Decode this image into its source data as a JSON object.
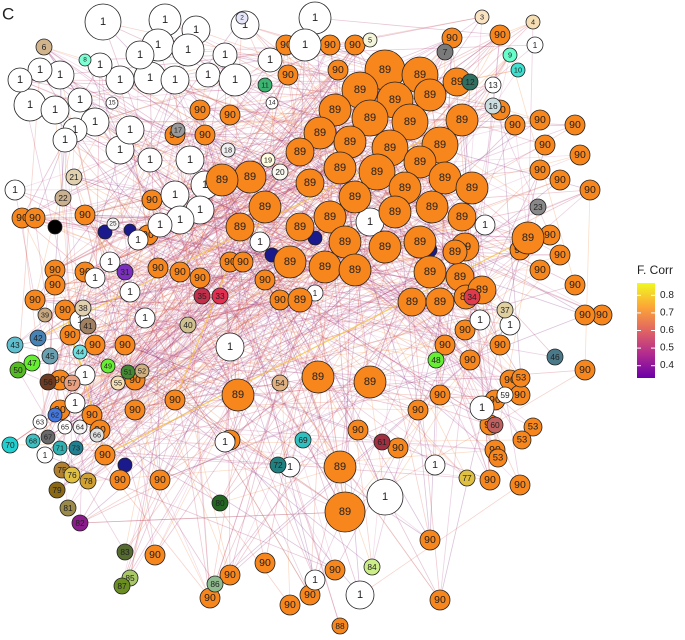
{
  "panel_label": "C",
  "colorbar": {
    "title": "F. Corr",
    "lim": [
      0.33,
      0.87
    ],
    "ticks": [
      0.8,
      0.7,
      0.6,
      0.5,
      0.4
    ],
    "colors": [
      "#6a00a8",
      "#b12a90",
      "#e16462",
      "#fca636",
      "#f0f921"
    ]
  },
  "node_groups": [
    {
      "color": "#ffffff",
      "labels": [
        "1",
        "1",
        "1",
        "1",
        "1",
        "1",
        "1",
        "1",
        "1",
        "1",
        "1",
        "1",
        "1",
        "1",
        "1",
        "1",
        "1",
        "1",
        "1",
        "1",
        "1",
        "1",
        "1",
        "1",
        "1",
        "1",
        "1",
        "1",
        "1",
        "1",
        "1",
        "1",
        "1",
        "1",
        "1",
        "1",
        "1",
        "1",
        "1",
        "1",
        "1",
        "1",
        "1",
        "1",
        "1",
        "1",
        "1",
        "1",
        "1",
        "1",
        "1",
        "1",
        "1",
        "1",
        "1",
        "1",
        "1",
        "1",
        "1",
        "1"
      ]
    },
    {
      "color": "#f7861d",
      "labels": [
        "89",
        "89",
        "89",
        "89",
        "89",
        "89",
        "89",
        "89",
        "89",
        "89",
        "89",
        "89",
        "89",
        "89",
        "89",
        "89",
        "89",
        "89",
        "89",
        "89",
        "89",
        "89",
        "89",
        "89",
        "89",
        "89",
        "89",
        "89",
        "89",
        "89",
        "89",
        "89",
        "89",
        "89",
        "89",
        "89",
        "89",
        "89",
        "89",
        "89",
        "89",
        "89",
        "89",
        "89",
        "89",
        "89",
        "89",
        "89",
        "89",
        "89",
        "89",
        "89",
        "89"
      ]
    },
    {
      "color": "#f7861d",
      "labels": [
        "90",
        "90",
        "90",
        "90",
        "90",
        "90",
        "90",
        "90",
        "90",
        "90",
        "90",
        "90",
        "90",
        "90",
        "90",
        "90",
        "90",
        "90",
        "90",
        "90",
        "90",
        "90",
        "90",
        "90",
        "90",
        "90",
        "90",
        "90",
        "90",
        "90",
        "90",
        "90",
        "90",
        "90",
        "90",
        "90",
        "90",
        "90",
        "90",
        "90",
        "90",
        "90",
        "90",
        "90",
        "90",
        "90",
        "90",
        "90",
        "90",
        "90",
        "90",
        "90",
        "90",
        "90",
        "90",
        "90",
        "90",
        "90",
        "90",
        "90",
        "90",
        "90",
        "90",
        "90",
        "90",
        "90",
        "90",
        "90",
        "90",
        "90",
        "90",
        "90",
        "90",
        "90",
        "90",
        "90",
        "90",
        "90",
        "90",
        "90",
        "90",
        "90",
        "90"
      ]
    },
    {
      "color": "#f7861d",
      "labels": [
        "53",
        "53",
        "53",
        "53"
      ]
    }
  ],
  "other_nodes": {
    "labels": [
      "2",
      "3",
      "4",
      "5",
      "6",
      "7",
      "8",
      "9",
      "10",
      "11",
      "12",
      "13",
      "14",
      "15",
      "16",
      "17",
      "18",
      "19",
      "20",
      "21",
      "22",
      "23",
      "25",
      "31",
      "33",
      "34",
      "35",
      "37",
      "38",
      "39",
      "40",
      "41",
      "42",
      "43",
      "44",
      "45",
      "46",
      "47",
      "48",
      "49",
      "50",
      "51",
      "52",
      "54",
      "55",
      "56",
      "57",
      "59",
      "60",
      "61",
      "62",
      "63",
      "64",
      "65",
      "66",
      "67",
      "68",
      "69",
      "70",
      "71",
      "72",
      "73",
      "75",
      "76",
      "77",
      "78",
      "79",
      "80",
      "81",
      "82",
      "83",
      "84",
      "85",
      "86",
      "87",
      "88"
    ],
    "colors": [
      "#e6e6fa",
      "#fae3c3",
      "#f5deb3",
      "#f5f5dc",
      "#d2b48c",
      "#7a7a7a",
      "#7fffd4",
      "#66ffcc",
      "#40e0d0",
      "#3cb371",
      "#2f6f5f",
      "#ffffff",
      "#ffffff",
      "#ffffff",
      "#ccdde0",
      "#999999",
      "#eeeeee",
      "#fffde0",
      "#f8f8f0",
      "#e0d0b0",
      "#c8b090",
      "#888888",
      "#f5f5f5",
      "#7b2fbe",
      "#e33050",
      "#e03a4d",
      "#c0304a",
      "#e0d0a0",
      "#e0d0b0",
      "#c8a880",
      "#d0c090",
      "#a08060",
      "#4682b4",
      "#5fbfcf",
      "#6fdfdf",
      "#6aa0b0",
      "#4a7a8a",
      "#66ee33",
      "#66ee33",
      "#66ee33",
      "#55bb22",
      "#448833",
      "#d0b080",
      "#e0b080",
      "#f5deb3",
      "#6b3a20",
      "#e8a080",
      "#ffffff",
      "#c06060",
      "#a03040",
      "#4477dd",
      "#ffffff",
      "#f5f5f5",
      "#ffffff",
      "#e0e0e0",
      "#6a6a6a",
      "#40c0c0",
      "#30c0c0",
      "#20d0d0",
      "#30b0b0",
      "#208080",
      "#208090",
      "#b08030",
      "#e0c040",
      "#e0c040",
      "#d0a030",
      "#8b6914",
      "#226622",
      "#9b8b4a",
      "#8b1c8b",
      "#556b2f",
      "#ccee88",
      "#a8c868",
      "#8fbc8f",
      "#6b8e23",
      "#f7861d"
    ]
  }
}
